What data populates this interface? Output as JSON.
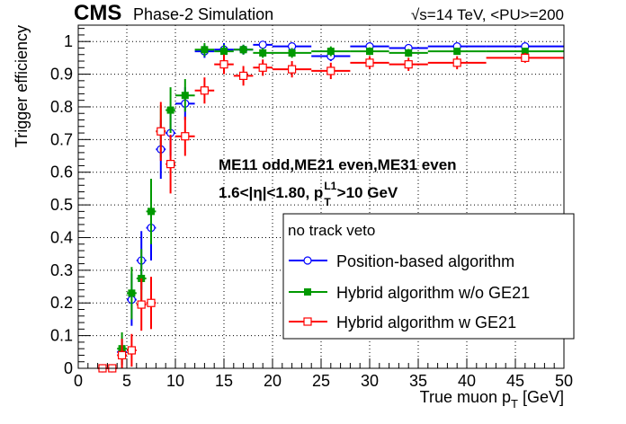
{
  "header": {
    "experiment": "CMS",
    "subtitle": "Phase-2 Simulation",
    "conditions": "√s=14 TeV, <PU>=200"
  },
  "annotations": {
    "line1": "ME11 odd,ME21 even,ME31 even",
    "line2_prefix": "1.6<|η|<1.80, p",
    "line2_sup": "L1",
    "line2_sub": "T",
    "line2_suffix": ">10 GeV"
  },
  "legend": {
    "title": "no track veto",
    "entries": [
      "Position-based algorithm",
      "Hybrid algorithm w/o GE21",
      "Hybrid algorithm w GE21"
    ]
  },
  "chart_data": {
    "type": "scatter",
    "xlabel": "True muon p_T [GeV]",
    "xlabel_main": "True muon p",
    "xlabel_sub": "T",
    "xlabel_unit": " [GeV]",
    "ylabel": "Trigger efficiency",
    "xlim": [
      0,
      50
    ],
    "ylim": [
      0,
      1.05
    ],
    "grid": true,
    "legend_position": "right-center",
    "x_ticks": [
      0,
      5,
      10,
      15,
      20,
      25,
      30,
      35,
      40,
      45,
      50
    ],
    "y_ticks": [
      0,
      0.1,
      0.2,
      0.3,
      0.4,
      0.5,
      0.6,
      0.7,
      0.8,
      0.9,
      1
    ],
    "series": [
      {
        "name": "Position-based algorithm",
        "color": "#0000ff",
        "marker": "open-circle",
        "points": [
          {
            "x": 2.5,
            "y": 0.0,
            "xerr": 0.5,
            "yerr": 0.0
          },
          {
            "x": 3.5,
            "y": 0.0,
            "xerr": 0.5,
            "yerr": 0.0
          },
          {
            "x": 4.5,
            "y": 0.05,
            "xerr": 0.5,
            "yerr": 0.04
          },
          {
            "x": 5.5,
            "y": 0.21,
            "xerr": 0.5,
            "yerr": 0.08
          },
          {
            "x": 6.5,
            "y": 0.33,
            "xerr": 0.5,
            "yerr": 0.09
          },
          {
            "x": 7.5,
            "y": 0.43,
            "xerr": 0.5,
            "yerr": 0.1
          },
          {
            "x": 8.5,
            "y": 0.67,
            "xerr": 0.5,
            "yerr": 0.09
          },
          {
            "x": 9.5,
            "y": 0.72,
            "xerr": 0.5,
            "yerr": 0.07
          },
          {
            "x": 11,
            "y": 0.81,
            "xerr": 1,
            "yerr": 0.05
          },
          {
            "x": 13,
            "y": 0.97,
            "xerr": 1,
            "yerr": 0.02
          },
          {
            "x": 15,
            "y": 0.975,
            "xerr": 1,
            "yerr": 0.02
          },
          {
            "x": 17,
            "y": 0.975,
            "xerr": 1,
            "yerr": 0.015
          },
          {
            "x": 19,
            "y": 0.99,
            "xerr": 1,
            "yerr": 0.01
          },
          {
            "x": 22,
            "y": 0.985,
            "xerr": 2,
            "yerr": 0.01
          },
          {
            "x": 26,
            "y": 0.955,
            "xerr": 2,
            "yerr": 0.015
          },
          {
            "x": 30,
            "y": 0.985,
            "xerr": 2,
            "yerr": 0.01
          },
          {
            "x": 34,
            "y": 0.98,
            "xerr": 2,
            "yerr": 0.01
          },
          {
            "x": 39,
            "y": 0.985,
            "xerr": 3,
            "yerr": 0.01
          },
          {
            "x": 46,
            "y": 0.985,
            "xerr": 4,
            "yerr": 0.01
          }
        ]
      },
      {
        "name": "Hybrid algorithm w/o GE21",
        "color": "#009900",
        "marker": "filled-square",
        "points": [
          {
            "x": 2.5,
            "y": 0.0,
            "xerr": 0.5,
            "yerr": 0.0
          },
          {
            "x": 3.5,
            "y": 0.0,
            "xerr": 0.5,
            "yerr": 0.0
          },
          {
            "x": 4.5,
            "y": 0.06,
            "xerr": 0.5,
            "yerr": 0.05
          },
          {
            "x": 5.5,
            "y": 0.23,
            "xerr": 0.5,
            "yerr": 0.08
          },
          {
            "x": 6.5,
            "y": 0.275,
            "xerr": 0.5,
            "yerr": 0.09
          },
          {
            "x": 7.5,
            "y": 0.48,
            "xerr": 0.5,
            "yerr": 0.1
          },
          {
            "x": 8.5,
            "y": 0.725,
            "xerr": 0.5,
            "yerr": 0.08
          },
          {
            "x": 9.5,
            "y": 0.79,
            "xerr": 0.5,
            "yerr": 0.07
          },
          {
            "x": 11,
            "y": 0.835,
            "xerr": 1,
            "yerr": 0.05
          },
          {
            "x": 13,
            "y": 0.975,
            "xerr": 1,
            "yerr": 0.02
          },
          {
            "x": 15,
            "y": 0.97,
            "xerr": 1,
            "yerr": 0.02
          },
          {
            "x": 17,
            "y": 0.975,
            "xerr": 1,
            "yerr": 0.015
          },
          {
            "x": 19,
            "y": 0.965,
            "xerr": 1,
            "yerr": 0.015
          },
          {
            "x": 22,
            "y": 0.965,
            "xerr": 2,
            "yerr": 0.015
          },
          {
            "x": 26,
            "y": 0.97,
            "xerr": 2,
            "yerr": 0.015
          },
          {
            "x": 30,
            "y": 0.97,
            "xerr": 2,
            "yerr": 0.012
          },
          {
            "x": 34,
            "y": 0.965,
            "xerr": 2,
            "yerr": 0.012
          },
          {
            "x": 39,
            "y": 0.97,
            "xerr": 3,
            "yerr": 0.01
          },
          {
            "x": 46,
            "y": 0.97,
            "xerr": 4,
            "yerr": 0.01
          }
        ]
      },
      {
        "name": "Hybrid algorithm w GE21",
        "color": "#ff0000",
        "marker": "open-square",
        "points": [
          {
            "x": 2.5,
            "y": 0.0,
            "xerr": 0.5,
            "yerr": 0.0
          },
          {
            "x": 3.5,
            "y": 0.0,
            "xerr": 0.5,
            "yerr": 0.0
          },
          {
            "x": 4.5,
            "y": 0.04,
            "xerr": 0.5,
            "yerr": 0.05
          },
          {
            "x": 5.5,
            "y": 0.055,
            "xerr": 0.5,
            "yerr": 0.05
          },
          {
            "x": 6.5,
            "y": 0.195,
            "xerr": 0.5,
            "yerr": 0.08
          },
          {
            "x": 7.5,
            "y": 0.2,
            "xerr": 0.5,
            "yerr": 0.08
          },
          {
            "x": 8.5,
            "y": 0.725,
            "xerr": 0.5,
            "yerr": 0.09
          },
          {
            "x": 9.5,
            "y": 0.625,
            "xerr": 0.5,
            "yerr": 0.09
          },
          {
            "x": 11,
            "y": 0.71,
            "xerr": 1,
            "yerr": 0.06
          },
          {
            "x": 13,
            "y": 0.85,
            "xerr": 1,
            "yerr": 0.04
          },
          {
            "x": 15,
            "y": 0.93,
            "xerr": 1,
            "yerr": 0.03
          },
          {
            "x": 17,
            "y": 0.895,
            "xerr": 1,
            "yerr": 0.03
          },
          {
            "x": 19,
            "y": 0.92,
            "xerr": 1,
            "yerr": 0.025
          },
          {
            "x": 22,
            "y": 0.915,
            "xerr": 2,
            "yerr": 0.025
          },
          {
            "x": 26,
            "y": 0.91,
            "xerr": 2,
            "yerr": 0.025
          },
          {
            "x": 30,
            "y": 0.935,
            "xerr": 2,
            "yerr": 0.02
          },
          {
            "x": 34,
            "y": 0.93,
            "xerr": 2,
            "yerr": 0.02
          },
          {
            "x": 39,
            "y": 0.935,
            "xerr": 3,
            "yerr": 0.02
          },
          {
            "x": 46,
            "y": 0.95,
            "xerr": 4,
            "yerr": 0.015
          }
        ]
      }
    ]
  }
}
